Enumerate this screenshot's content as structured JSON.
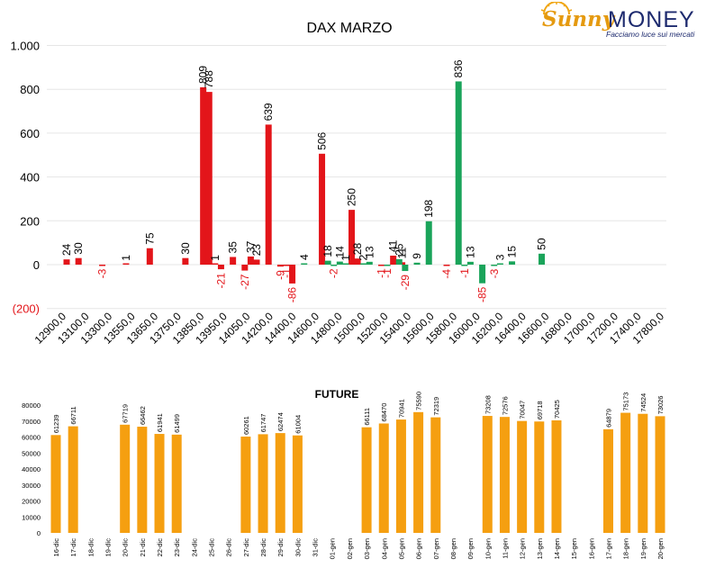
{
  "logo": {
    "brand_sunny": "Sunny",
    "brand_money": "MONEY",
    "tagline": "Facciamo luce sui mercati"
  },
  "colors": {
    "red": "#e3151a",
    "green": "#1aa45a",
    "orange": "#f59f10",
    "axis_text": "#000000",
    "neg_label": "#e3151a",
    "grid": "#e6e6e6"
  },
  "chart_data": [
    {
      "type": "bar",
      "title": "DAX MARZO",
      "ylim": [
        -200,
        1000
      ],
      "yticks": [
        1000,
        800,
        600,
        400,
        200,
        0,
        -200
      ],
      "ytick_labels": [
        "1.000",
        "800",
        "600",
        "400",
        "200",
        "0",
        "(200)"
      ],
      "grid": true,
      "xtick_labels": [
        "12900,0",
        "13100,0",
        "13300,0",
        "13550,0",
        "13650,0",
        "13750,0",
        "13850,0",
        "13950,0",
        "14050,0",
        "14200,0",
        "14400,0",
        "14600,0",
        "14800,0",
        "15000,0",
        "15200,0",
        "15400,0",
        "15600,0",
        "15800,0",
        "16000,0",
        "16200,0",
        "16400,0",
        "16600,0",
        "16800,0",
        "17000,0",
        "17200,0",
        "17400,0",
        "17800,0"
      ],
      "series": [
        {
          "color": "red",
          "points": [
            {
              "x": 12900,
              "y": 24,
              "label": "24"
            },
            {
              "x": 13000,
              "y": 30,
              "label": "30"
            },
            {
              "x": 13200,
              "y": -3,
              "label": "-3"
            },
            {
              "x": 13400,
              "y": 1,
              "label": "1"
            },
            {
              "x": 13600,
              "y": 75,
              "label": "75"
            },
            {
              "x": 13900,
              "y": 30,
              "label": "30"
            },
            {
              "x": 14050,
              "y": 809,
              "label": "809"
            },
            {
              "x": 14100,
              "y": 788,
              "label": "788"
            },
            {
              "x": 14150,
              "y": 1,
              "label": "1"
            },
            {
              "x": 14200,
              "y": -21,
              "label": "-21"
            },
            {
              "x": 14300,
              "y": 35,
              "label": "35"
            },
            {
              "x": 14400,
              "y": -27,
              "label": "-27"
            },
            {
              "x": 14450,
              "y": 37,
              "label": "37"
            },
            {
              "x": 14500,
              "y": 23,
              "label": "23"
            },
            {
              "x": 14600,
              "y": 639,
              "label": "639"
            },
            {
              "x": 14700,
              "y": -9,
              "label": "-9"
            },
            {
              "x": 14750,
              "y": -1,
              "label": "-1"
            },
            {
              "x": 14800,
              "y": -86,
              "label": "-86"
            },
            {
              "x": 15050,
              "y": 506,
              "label": "506"
            },
            {
              "x": 15300,
              "y": 250,
              "label": "250"
            },
            {
              "x": 15350,
              "y": 28,
              "label": "28"
            },
            {
              "x": 15550,
              "y": -1,
              "label": "-1"
            },
            {
              "x": 15650,
              "y": 41,
              "label": "41"
            },
            {
              "x": 15725,
              "y": 11,
              "label": "11"
            },
            {
              "x": 16100,
              "y": -4,
              "label": "-4"
            }
          ]
        },
        {
          "color": "green",
          "points": [
            {
              "x": 14900,
              "y": 4,
              "label": "4"
            },
            {
              "x": 15100,
              "y": 18,
              "label": "18"
            },
            {
              "x": 15150,
              "y": -2,
              "label": "-2"
            },
            {
              "x": 15200,
              "y": 14,
              "label": "14"
            },
            {
              "x": 15250,
              "y": 1,
              "label": "1"
            },
            {
              "x": 15400,
              "y": 2,
              "label": "2"
            },
            {
              "x": 15450,
              "y": 13,
              "label": "13"
            },
            {
              "x": 15600,
              "y": -1,
              "label": "-1"
            },
            {
              "x": 15700,
              "y": 25,
              "label": "25"
            },
            {
              "x": 15750,
              "y": -29,
              "label": "-29"
            },
            {
              "x": 15850,
              "y": 9,
              "label": "9"
            },
            {
              "x": 15950,
              "y": 198,
              "label": "198"
            },
            {
              "x": 16200,
              "y": 836,
              "label": "836"
            },
            {
              "x": 16250,
              "y": -1,
              "label": "-1"
            },
            {
              "x": 16300,
              "y": 13,
              "label": "13"
            },
            {
              "x": 16400,
              "y": -85,
              "label": "-85"
            },
            {
              "x": 16500,
              "y": -3,
              "label": "-3"
            },
            {
              "x": 16550,
              "y": 3,
              "label": "3"
            },
            {
              "x": 16650,
              "y": 15,
              "label": "15"
            },
            {
              "x": 16900,
              "y": 50,
              "label": "50"
            }
          ]
        }
      ]
    },
    {
      "type": "bar",
      "title": "FUTURE",
      "ylim": [
        0,
        80000
      ],
      "yticks": [
        0,
        10000,
        20000,
        30000,
        40000,
        50000,
        60000,
        70000,
        80000
      ],
      "ytick_labels": [
        "0",
        "10000",
        "20000",
        "30000",
        "40000",
        "50000",
        "60000",
        "70000",
        "80000"
      ],
      "grid": false,
      "categories": [
        "16-dic",
        "17-dic",
        "18-dic",
        "19-dic",
        "20-dic",
        "21-dic",
        "22-dic",
        "23-dic",
        "24-dic",
        "25-dic",
        "26-dic",
        "27-dic",
        "28-dic",
        "29-dic",
        "30-dic",
        "31-dic",
        "01-gen",
        "02-gen",
        "03-gen",
        "04-gen",
        "05-gen",
        "06-gen",
        "07-gen",
        "08-gen",
        "09-gen",
        "10-gen",
        "11-gen",
        "12-gen",
        "13-gen",
        "14-gen",
        "15-gen",
        "16-gen",
        "17-gen",
        "18-gen",
        "19-gen",
        "20-gen"
      ],
      "values": [
        61239,
        66711,
        null,
        null,
        67719,
        66462,
        61941,
        61499,
        null,
        null,
        null,
        60261,
        61747,
        62474,
        61004,
        null,
        null,
        null,
        66111,
        68470,
        70941,
        75590,
        72319,
        null,
        null,
        73208,
        72576,
        70047,
        69718,
        70425,
        null,
        null,
        64879,
        75173,
        74524,
        73026
      ],
      "color": "orange"
    }
  ]
}
